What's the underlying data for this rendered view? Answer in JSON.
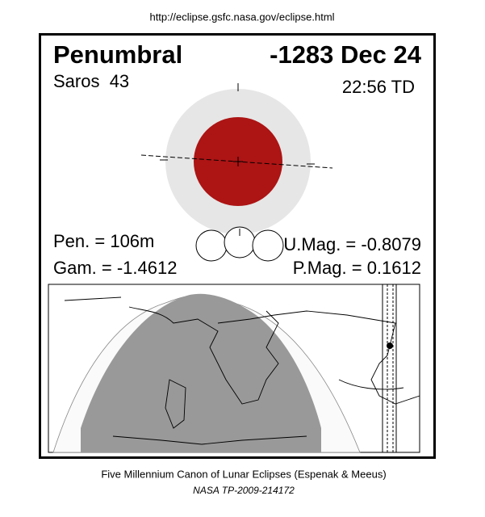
{
  "header": {
    "url": "http://eclipse.gsfc.nasa.gov/eclipse.html"
  },
  "eclipse": {
    "type": "Penumbral",
    "date": "-1283 Dec 24",
    "saros": "Saros  43",
    "time": "22:56 TD",
    "pen": "Pen. = 106m",
    "gam": "Gam. = -1.4612",
    "umag": "U.Mag. = -0.8079",
    "pmag": "P.Mag. = 0.1612"
  },
  "footer": {
    "line1": "Five Millennium Canon of Lunar Eclipses (Espenak & Meeus)",
    "line2": "NASA TP-2009-214172"
  }
}
